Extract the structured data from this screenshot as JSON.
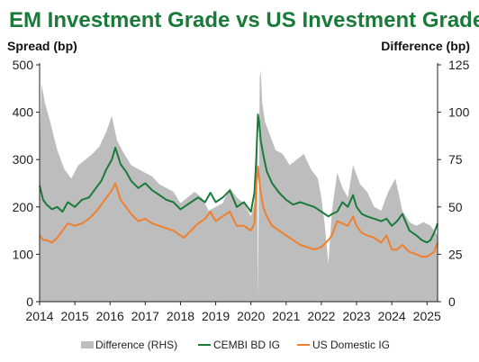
{
  "chart_data": {
    "type": "line",
    "title": "EM Investment Grade vs US Investment Grade",
    "ylabel_left": "Spread (bp)",
    "ylabel_right": "Difference (bp)",
    "ylim_left": [
      0,
      500
    ],
    "ylim_right": [
      0,
      125
    ],
    "xlim": [
      2014.0,
      2025.3
    ],
    "yticks_left": [
      0,
      100,
      200,
      300,
      400,
      500
    ],
    "yticks_right": [
      0,
      25,
      50,
      75,
      100,
      125
    ],
    "xticks": [
      2014,
      2015,
      2016,
      2017,
      2018,
      2019,
      2020,
      2021,
      2022,
      2023,
      2024,
      2025
    ],
    "colors": {
      "difference": "#bdbdbd",
      "cembi": "#1a7a3a",
      "us": "#f07f2e"
    },
    "legend": [
      "Difference (RHS)",
      "CEMBI BD IG",
      "US Domestic IG"
    ],
    "legend_position": "bottom",
    "series": [
      {
        "name": "CEMBI BD IG",
        "axis": "left",
        "type": "line",
        "x": [
          2014.0,
          2014.1,
          2014.2,
          2014.35,
          2014.5,
          2014.65,
          2014.8,
          2015.0,
          2015.2,
          2015.4,
          2015.6,
          2015.75,
          2015.9,
          2016.05,
          2016.15,
          2016.3,
          2016.45,
          2016.6,
          2016.8,
          2017.0,
          2017.2,
          2017.4,
          2017.6,
          2017.8,
          2018.0,
          2018.1,
          2018.3,
          2018.5,
          2018.7,
          2018.85,
          2019.0,
          2019.2,
          2019.4,
          2019.6,
          2019.8,
          2020.0,
          2020.1,
          2020.15,
          2020.2,
          2020.23,
          2020.28,
          2020.35,
          2020.45,
          2020.6,
          2020.8,
          2021.0,
          2021.2,
          2021.4,
          2021.6,
          2021.8,
          2022.0,
          2022.2,
          2022.3,
          2022.45,
          2022.6,
          2022.75,
          2022.9,
          2023.0,
          2023.15,
          2023.3,
          2023.5,
          2023.7,
          2023.85,
          2024.0,
          2024.15,
          2024.3,
          2024.5,
          2024.7,
          2024.85,
          2025.0,
          2025.1,
          2025.2,
          2025.3
        ],
        "y": [
          245,
          215,
          205,
          195,
          200,
          190,
          210,
          200,
          215,
          220,
          240,
          255,
          280,
          300,
          325,
          290,
          275,
          255,
          240,
          250,
          235,
          225,
          215,
          210,
          195,
          200,
          210,
          220,
          210,
          230,
          210,
          220,
          235,
          200,
          210,
          190,
          230,
          300,
          395,
          380,
          340,
          310,
          275,
          250,
          230,
          215,
          205,
          210,
          205,
          200,
          190,
          180,
          185,
          190,
          210,
          200,
          225,
          200,
          185,
          180,
          175,
          170,
          175,
          160,
          170,
          185,
          150,
          140,
          130,
          125,
          130,
          145,
          165
        ]
      },
      {
        "name": "US Domestic IG",
        "axis": "left",
        "type": "line",
        "x": [
          2014.0,
          2014.1,
          2014.2,
          2014.35,
          2014.5,
          2014.65,
          2014.8,
          2015.0,
          2015.2,
          2015.4,
          2015.6,
          2015.75,
          2015.9,
          2016.05,
          2016.15,
          2016.3,
          2016.45,
          2016.6,
          2016.8,
          2017.0,
          2017.2,
          2017.4,
          2017.6,
          2017.8,
          2018.0,
          2018.1,
          2018.3,
          2018.5,
          2018.7,
          2018.85,
          2019.0,
          2019.2,
          2019.4,
          2019.6,
          2019.8,
          2020.0,
          2020.1,
          2020.15,
          2020.2,
          2020.23,
          2020.28,
          2020.35,
          2020.45,
          2020.6,
          2020.8,
          2021.0,
          2021.2,
          2021.4,
          2021.6,
          2021.8,
          2022.0,
          2022.2,
          2022.3,
          2022.45,
          2022.6,
          2022.75,
          2022.9,
          2023.0,
          2023.15,
          2023.3,
          2023.5,
          2023.7,
          2023.85,
          2024.0,
          2024.15,
          2024.3,
          2024.5,
          2024.7,
          2024.85,
          2025.0,
          2025.1,
          2025.2,
          2025.3
        ],
        "y": [
          140,
          130,
          130,
          125,
          135,
          150,
          165,
          160,
          165,
          175,
          190,
          205,
          220,
          235,
          250,
          215,
          200,
          185,
          170,
          175,
          165,
          160,
          155,
          150,
          140,
          135,
          150,
          165,
          175,
          190,
          170,
          180,
          190,
          160,
          160,
          150,
          165,
          245,
          285,
          260,
          230,
          200,
          180,
          160,
          150,
          140,
          130,
          120,
          115,
          110,
          115,
          130,
          140,
          170,
          165,
          160,
          180,
          160,
          145,
          140,
          135,
          125,
          140,
          110,
          110,
          120,
          105,
          100,
          95,
          95,
          100,
          105,
          125
        ]
      },
      {
        "name": "Difference (RHS)",
        "axis": "right",
        "type": "area",
        "x": [
          2014.0,
          2014.05,
          2014.15,
          2014.3,
          2014.5,
          2014.7,
          2014.9,
          2015.1,
          2015.3,
          2015.5,
          2015.7,
          2015.9,
          2016.05,
          2016.2,
          2016.4,
          2016.6,
          2016.8,
          2017.0,
          2017.2,
          2017.4,
          2017.6,
          2017.8,
          2018.0,
          2018.2,
          2018.4,
          2018.6,
          2018.8,
          2019.0,
          2019.2,
          2019.4,
          2019.6,
          2019.8,
          2020.0,
          2020.1,
          2020.18,
          2020.2,
          2020.22,
          2020.25,
          2020.28,
          2020.32,
          2020.4,
          2020.5,
          2020.7,
          2020.9,
          2021.1,
          2021.3,
          2021.5,
          2021.7,
          2021.9,
          2022.0,
          2022.1,
          2022.2,
          2022.3,
          2022.45,
          2022.6,
          2022.75,
          2022.9,
          2023.1,
          2023.3,
          2023.5,
          2023.7,
          2023.9,
          2024.1,
          2024.3,
          2024.5,
          2024.7,
          2024.9,
          2025.1,
          2025.3
        ],
        "y": [
          75,
          115,
          105,
          95,
          80,
          70,
          65,
          72,
          75,
          78,
          82,
          90,
          98,
          85,
          78,
          72,
          70,
          68,
          66,
          62,
          60,
          58,
          52,
          55,
          58,
          55,
          48,
          50,
          52,
          60,
          55,
          52,
          45,
          52,
          90,
          0,
          50,
          118,
          122,
          105,
          95,
          90,
          80,
          78,
          72,
          75,
          78,
          70,
          65,
          55,
          40,
          20,
          48,
          68,
          60,
          55,
          72,
          62,
          58,
          50,
          48,
          58,
          65,
          48,
          42,
          40,
          42,
          40,
          35
        ]
      }
    ]
  }
}
